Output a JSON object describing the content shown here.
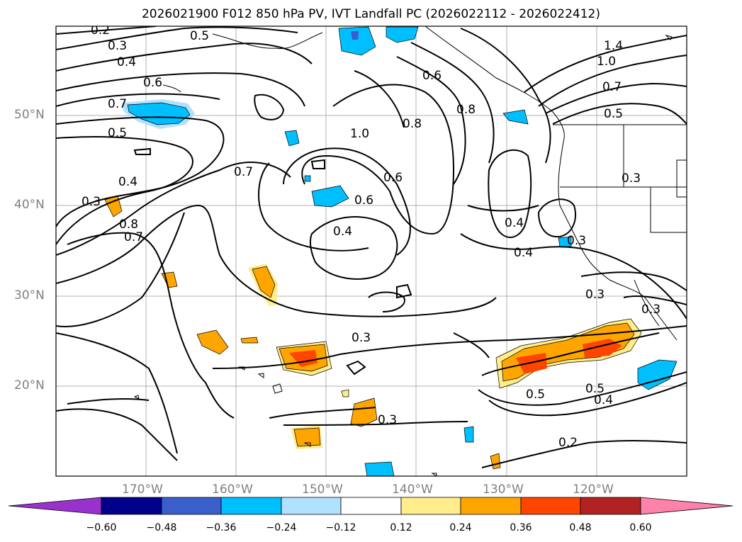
{
  "title": "2026021900 F012 850 hPa PV, IVT Landfall PC (2026022112 - 2026022412)",
  "map": {
    "lat_labels": [
      "50°N",
      "40°N",
      "30°N",
      "20°N"
    ],
    "lon_labels": [
      "170°W",
      "160°W",
      "150°W",
      "140°W",
      "130°W",
      "120°W"
    ],
    "contour_labels": [
      "0.2",
      "0.5",
      "0.3",
      "0.4",
      "0.6",
      "0.7",
      "0.5",
      "0.3",
      "0.4",
      "0.8",
      "0.7",
      "0.7",
      "1.0",
      "0.8",
      "0.8",
      "0.6",
      "0.6",
      "0.6",
      "0.4",
      "0.4",
      "0.4",
      "0.3",
      "0.3",
      "0.3",
      "0.5",
      "0.5",
      "0.4",
      "0.2",
      "0.3",
      "1.4",
      "1.0",
      "0.7",
      "0.5",
      "0.3",
      "0.3"
    ]
  },
  "colorbar": {
    "ticks": [
      "−0.60",
      "−0.48",
      "−0.36",
      "−0.24",
      "−0.12",
      "0.12",
      "0.24",
      "0.36",
      "0.48",
      "0.60"
    ],
    "colors": [
      "#9932cc",
      "#00008b",
      "#3a5fcd",
      "#00bfff",
      "#b0e2ff",
      "#ffffff",
      "#ffec8b",
      "#ffa500",
      "#ff4500",
      "#b22222",
      "#ff82ab"
    ]
  }
}
